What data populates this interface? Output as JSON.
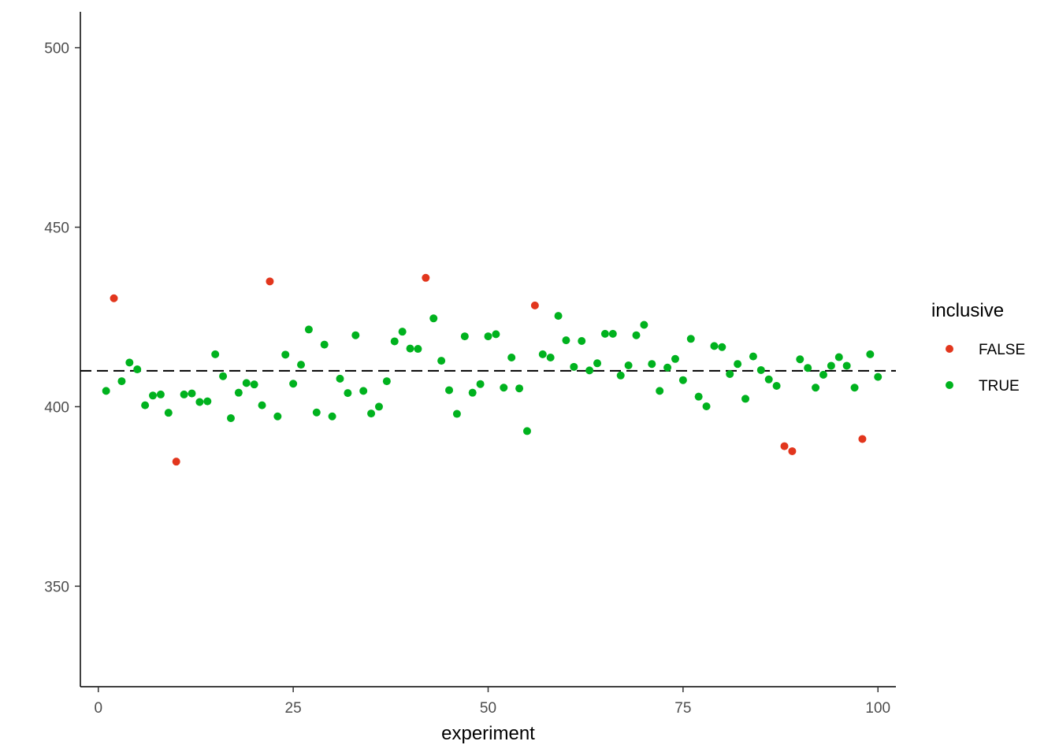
{
  "chart_data": {
    "type": "scatter",
    "xlabel": "experiment",
    "ylabel": "",
    "xlim": [
      -2.3,
      102.3
    ],
    "ylim": [
      322,
      510
    ],
    "x_ticks": [
      0,
      25,
      50,
      75,
      100
    ],
    "y_ticks": [
      350,
      400,
      450,
      500
    ],
    "x_tick_labels": [
      "0",
      "25",
      "50",
      "75",
      "100"
    ],
    "y_tick_labels": [
      "350",
      "400",
      "450",
      "500"
    ],
    "reference_line": {
      "y": 410,
      "style": "dashed",
      "color": "#000000"
    },
    "grid": false,
    "legend": {
      "title": "inclusive",
      "position": "right",
      "entries": [
        {
          "label": "FALSE",
          "color": "#e2361d"
        },
        {
          "label": "TRUE",
          "color": "#00b21e"
        }
      ]
    },
    "series": [
      {
        "name": "FALSE",
        "color": "#e2361d",
        "points": [
          [
            2,
            430.2
          ],
          [
            10,
            384.7
          ],
          [
            22,
            434.9
          ],
          [
            42,
            435.9
          ],
          [
            56,
            428.2
          ],
          [
            88,
            389.0
          ],
          [
            89,
            387.6
          ],
          [
            98,
            391.0
          ]
        ]
      },
      {
        "name": "TRUE",
        "color": "#00b21e",
        "points": [
          [
            1,
            404.4
          ],
          [
            3,
            407.1
          ],
          [
            4,
            412.3
          ],
          [
            5,
            410.4
          ],
          [
            6,
            400.4
          ],
          [
            7,
            403.1
          ],
          [
            8,
            403.4
          ],
          [
            9,
            398.3
          ],
          [
            11,
            403.4
          ],
          [
            12,
            403.7
          ],
          [
            13,
            401.3
          ],
          [
            14,
            401.5
          ],
          [
            15,
            414.6
          ],
          [
            16,
            408.5
          ],
          [
            17,
            396.8
          ],
          [
            18,
            403.9
          ],
          [
            19,
            406.6
          ],
          [
            20,
            406.2
          ],
          [
            21,
            400.4
          ],
          [
            23,
            397.3
          ],
          [
            24,
            414.5
          ],
          [
            25,
            406.4
          ],
          [
            26,
            411.7
          ],
          [
            27,
            421.5
          ],
          [
            28,
            398.4
          ],
          [
            29,
            417.3
          ],
          [
            30,
            397.3
          ],
          [
            31,
            407.8
          ],
          [
            32,
            403.8
          ],
          [
            33,
            419.9
          ],
          [
            34,
            404.4
          ],
          [
            35,
            398.1
          ],
          [
            36,
            400.0
          ],
          [
            37,
            407.1
          ],
          [
            38,
            418.2
          ],
          [
            39,
            420.9
          ],
          [
            40,
            416.2
          ],
          [
            41,
            416.1
          ],
          [
            43,
            424.6
          ],
          [
            44,
            412.8
          ],
          [
            45,
            404.6
          ],
          [
            46,
            398.0
          ],
          [
            47,
            419.6
          ],
          [
            48,
            403.9
          ],
          [
            49,
            406.3
          ],
          [
            50,
            419.6
          ],
          [
            51,
            420.2
          ],
          [
            52,
            405.3
          ],
          [
            53,
            413.7
          ],
          [
            54,
            405.1
          ],
          [
            55,
            393.2
          ],
          [
            57,
            414.6
          ],
          [
            58,
            413.7
          ],
          [
            59,
            425.3
          ],
          [
            60,
            418.5
          ],
          [
            61,
            411.1
          ],
          [
            62,
            418.3
          ],
          [
            63,
            410.1
          ],
          [
            64,
            412.1
          ],
          [
            65,
            420.3
          ],
          [
            66,
            420.3
          ],
          [
            67,
            408.7
          ],
          [
            68,
            411.5
          ],
          [
            69,
            419.9
          ],
          [
            70,
            422.8
          ],
          [
            71,
            411.9
          ],
          [
            72,
            404.4
          ],
          [
            73,
            410.9
          ],
          [
            74,
            413.3
          ],
          [
            75,
            407.4
          ],
          [
            76,
            418.9
          ],
          [
            77,
            402.8
          ],
          [
            78,
            400.1
          ],
          [
            79,
            416.9
          ],
          [
            80,
            416.6
          ],
          [
            81,
            409.1
          ],
          [
            82,
            411.9
          ],
          [
            83,
            402.2
          ],
          [
            84,
            414.0
          ],
          [
            85,
            410.2
          ],
          [
            86,
            407.6
          ],
          [
            87,
            405.8
          ],
          [
            90,
            413.2
          ],
          [
            91,
            410.8
          ],
          [
            92,
            405.3
          ],
          [
            93,
            408.9
          ],
          [
            94,
            411.4
          ],
          [
            95,
            413.8
          ],
          [
            96,
            411.4
          ],
          [
            97,
            405.3
          ],
          [
            99,
            414.6
          ],
          [
            100,
            408.3
          ]
        ]
      }
    ]
  }
}
